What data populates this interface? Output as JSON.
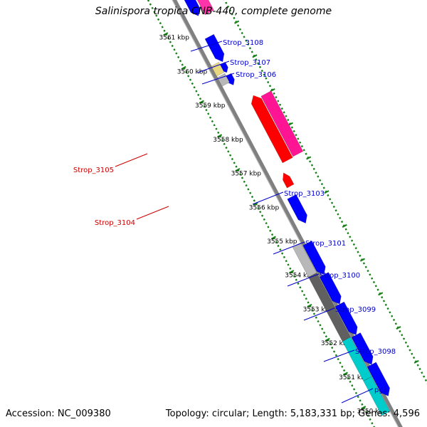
{
  "title": "Salinispora tropica CNB-440, complete genome",
  "footer": {
    "accession": "Accession: NC_009380",
    "summary": "Topology: circular; Length: 5,183,331 bp; Genes: 4,596"
  },
  "colors": {
    "backbone": "#808080",
    "tick": "#138013",
    "ruler_text": "#000000",
    "label_blue": "#0000CC",
    "label_red": "#CC0000",
    "blue": "#0000FF",
    "red": "#FF0000",
    "pink": "#FF1493",
    "magenta": "#FF33AA",
    "gray_dark": "#606060",
    "gray_light": "#B8B8B8",
    "cyan": "#00CCCC",
    "yellow": "#E8D880"
  },
  "ruler": [
    "3561 kbp",
    "3560 kbp",
    "3559 kbp",
    "3558 kbp",
    "3557 kbp",
    "3556 kbp",
    "3555 kbp",
    "3554 kbp",
    "3553 kbp",
    "3552 kbp",
    "3551 kbp",
    "3550 kbp"
  ],
  "labels": [
    {
      "id": "strop-3108",
      "text": "Strop_3108",
      "color": "blue"
    },
    {
      "id": "strop-3107",
      "text": "Strop_3107",
      "color": "blue"
    },
    {
      "id": "strop-3106",
      "text": "Strop_3106",
      "color": "blue"
    },
    {
      "id": "strop-3105",
      "text": "Strop_3105",
      "color": "red"
    },
    {
      "id": "strop-3103",
      "text": "Strop_3103",
      "color": "blue"
    },
    {
      "id": "strop-3104",
      "text": "Strop_3104",
      "color": "red"
    },
    {
      "id": "strop-3101",
      "text": "Strop_3101",
      "color": "blue"
    },
    {
      "id": "strop-3100",
      "text": "Strop_3100",
      "color": "blue"
    },
    {
      "id": "strop-3099",
      "text": "Strop_3099",
      "color": "blue"
    },
    {
      "id": "strop-3098",
      "text": "Strop_3098",
      "color": "blue"
    },
    {
      "id": "pgk",
      "text": "pgk",
      "color": "blue"
    }
  ]
}
